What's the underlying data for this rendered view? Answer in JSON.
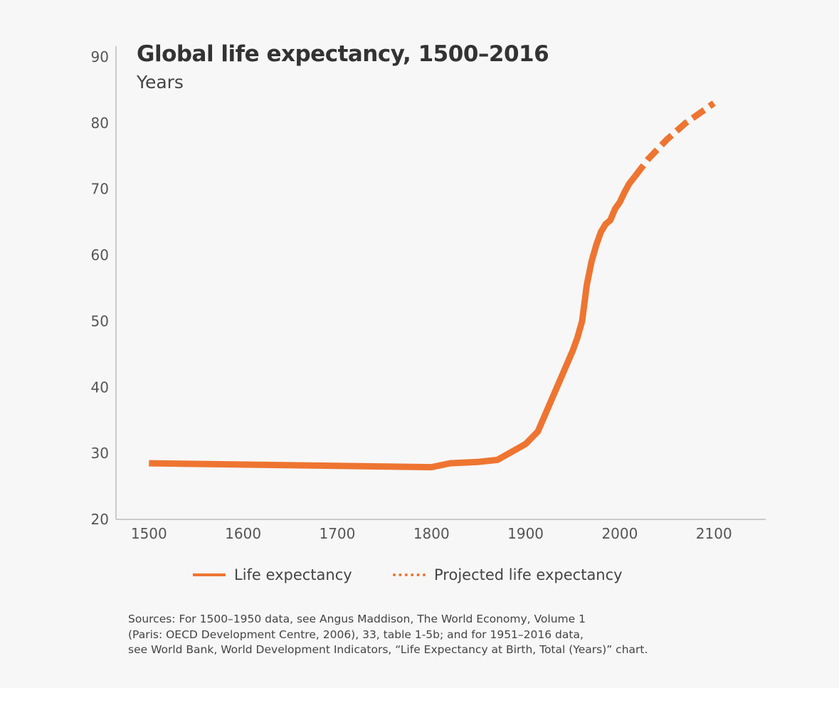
{
  "chart_data": {
    "type": "line",
    "title": "Global life expectancy, 1500–2016",
    "ylabel": "Years",
    "xlabel": "",
    "xlim": [
      1465,
      2155
    ],
    "ylim": [
      20,
      90
    ],
    "x_ticks": [
      1500,
      1600,
      1700,
      1800,
      1900,
      2000,
      2100
    ],
    "y_ticks": [
      20,
      30,
      40,
      50,
      60,
      70,
      80,
      90
    ],
    "series": [
      {
        "name": "Life expectancy",
        "style": "solid",
        "x": [
          1500,
          1800,
          1820,
          1850,
          1870,
          1900,
          1913,
          1950,
          1955,
          1960,
          1965,
          1970,
          1975,
          1980,
          1985,
          1990,
          1995,
          2000,
          2005,
          2010,
          2016
        ],
        "y": [
          28.5,
          27.9,
          28.5,
          28.7,
          29.0,
          31.4,
          33.3,
          45.5,
          47.5,
          50.0,
          55.5,
          59.0,
          61.5,
          63.5,
          64.7,
          65.3,
          67.0,
          68.0,
          69.5,
          70.8,
          71.9
        ]
      },
      {
        "name": "Projected life expectancy",
        "style": "dashed",
        "x": [
          2016,
          2030,
          2050,
          2070,
          2090,
          2100
        ],
        "y": [
          71.9,
          74.5,
          77.5,
          80.0,
          82.0,
          83.0
        ]
      }
    ],
    "legend": {
      "position": "bottom",
      "solid_label": "Life expectancy",
      "dashed_label": "Projected life expectancy"
    },
    "grid": false,
    "colors": {
      "line": "#ee7531",
      "axis": "#bbbbbb",
      "background": "#f7f7f7"
    }
  },
  "sources": [
    "Sources: For 1500–1950 data, see Angus Maddison, The World Economy, Volume 1",
    "(Paris: OECD Development Centre, 2006), 33, table 1-5b; and for 1951–2016 data,",
    "see World Bank, World Development Indicators, “Life Expectancy at Birth, Total (Years)” chart."
  ]
}
